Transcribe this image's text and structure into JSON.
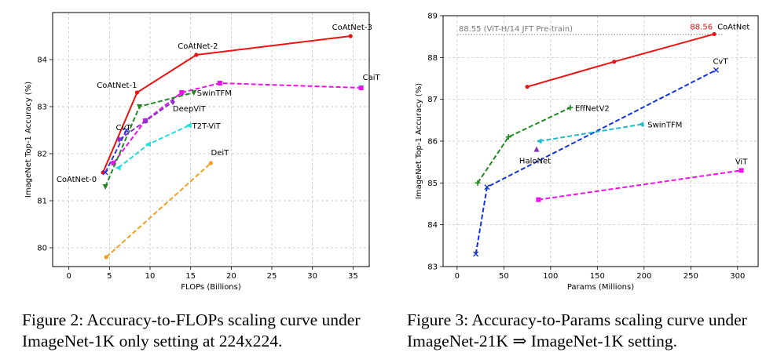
{
  "chart_data": [
    {
      "type": "line",
      "xlabel": "FLOPs (Billions)",
      "ylabel": "ImageNet Top-1 Accuracy (%)",
      "xlim": [
        -2,
        37
      ],
      "ylim": [
        79.6,
        85.0
      ],
      "xticks": [
        0,
        5,
        10,
        15,
        20,
        25,
        30,
        35
      ],
      "yticks": [
        80,
        81,
        82,
        83,
        84
      ],
      "grid": true,
      "series": [
        {
          "name": "CoAtNet",
          "color": "#ee1111",
          "marker": "circle",
          "dash": "solid",
          "x": [
            4.2,
            8.4,
            15.7,
            34.7
          ],
          "y": [
            81.6,
            83.3,
            84.1,
            84.5
          ],
          "point_labels": [
            "CoAtNet-0",
            "CoAtNet-1",
            "CoAtNet-2",
            "CoAtNet-3"
          ]
        },
        {
          "name": "CaiT",
          "color": "#ee11ee",
          "marker": "square",
          "dash": "dashed",
          "x": [
            5.5,
            9.4,
            13.9,
            18.6,
            36.0
          ],
          "y": [
            81.8,
            82.7,
            83.3,
            83.5,
            83.4
          ],
          "label": "CaiT"
        },
        {
          "name": "SwinTFM",
          "color": "#228822",
          "marker": "tri_down",
          "dash": "dashed",
          "x": [
            4.5,
            8.7,
            15.4
          ],
          "y": [
            81.3,
            83.0,
            83.3
          ],
          "label": "SwinTFM"
        },
        {
          "name": "DeepViT",
          "color": "#8833cc",
          "marker": "diamond",
          "dash": "dashed",
          "x": [
            6.2,
            9.5,
            12.8
          ],
          "y": [
            82.3,
            82.7,
            83.1
          ],
          "label": "DeepViT"
        },
        {
          "name": "CvT",
          "color": "#3333ee",
          "marker": "x",
          "dash": "dashed",
          "x": [
            4.5,
            7.1
          ],
          "y": [
            81.6,
            82.5
          ],
          "label": "CvT"
        },
        {
          "name": "T2T-ViT",
          "color": "#22dddd",
          "marker": "tri_left",
          "dash": "dashed",
          "x": [
            6.1,
            9.8,
            14.8
          ],
          "y": [
            81.7,
            82.2,
            82.6
          ],
          "label": "T2T-ViT"
        },
        {
          "name": "DeiT",
          "color": "#f0a020",
          "marker": "circle",
          "dash": "dashed",
          "x": [
            4.6,
            17.5
          ],
          "y": [
            79.8,
            81.8
          ],
          "label": "DeiT"
        }
      ]
    },
    {
      "type": "line",
      "xlabel": "Params (Millions)",
      "ylabel": "ImageNet Top-1 Accuracy (%)",
      "xlim": [
        -15,
        322
      ],
      "ylim": [
        83,
        89
      ],
      "xticks": [
        0,
        50,
        100,
        150,
        200,
        250,
        300
      ],
      "yticks": [
        83,
        84,
        85,
        86,
        87,
        88,
        89
      ],
      "grid": true,
      "reference_line": {
        "y": 88.55,
        "label": "88.55 (ViT-H/14 JFT Pre-train)",
        "x_from": 0,
        "x_to": 275
      },
      "series": [
        {
          "name": "CoAtNet",
          "color": "#ee1111",
          "marker": "circle",
          "dash": "solid",
          "x": [
            75,
            168,
            275
          ],
          "y": [
            87.3,
            87.9,
            88.56
          ],
          "label": "CoAtNet",
          "value_label": "88.56"
        },
        {
          "name": "CvT",
          "color": "#1133dd",
          "marker": "x",
          "dash": "dashed",
          "x": [
            20,
            32,
            277
          ],
          "y": [
            83.3,
            84.9,
            87.7
          ],
          "label": "CvT"
        },
        {
          "name": "EffNetV2",
          "color": "#228822",
          "marker": "plus",
          "dash": "dashed",
          "x": [
            22,
            55,
            121
          ],
          "y": [
            85.0,
            86.1,
            86.8
          ],
          "label": "EffNetV2"
        },
        {
          "name": "SwinTFM",
          "color": "#22bbcc",
          "marker": "tri_left",
          "dash": "dashed",
          "x": [
            88,
            197
          ],
          "y": [
            86.0,
            86.4
          ],
          "label": "SwinTFM"
        },
        {
          "name": "HaloNet",
          "color": "#8833aa",
          "marker": "triangle",
          "dash": "none",
          "x": [
            85
          ],
          "y": [
            85.8
          ],
          "label": "HaloNet"
        },
        {
          "name": "ViT",
          "color": "#ee11ee",
          "marker": "square",
          "dash": "dashed",
          "x": [
            87,
            304
          ],
          "y": [
            84.6,
            85.3
          ],
          "label": "ViT"
        }
      ]
    }
  ],
  "captions": {
    "fig2": "Figure 2: Accuracy-to-FLOPs scaling curve under ImageNet-1K only setting at 224x224.",
    "fig3": "Figure 3: Accuracy-to-Params scaling curve under ImageNet-21K ⇒ ImageNet-1K setting."
  }
}
